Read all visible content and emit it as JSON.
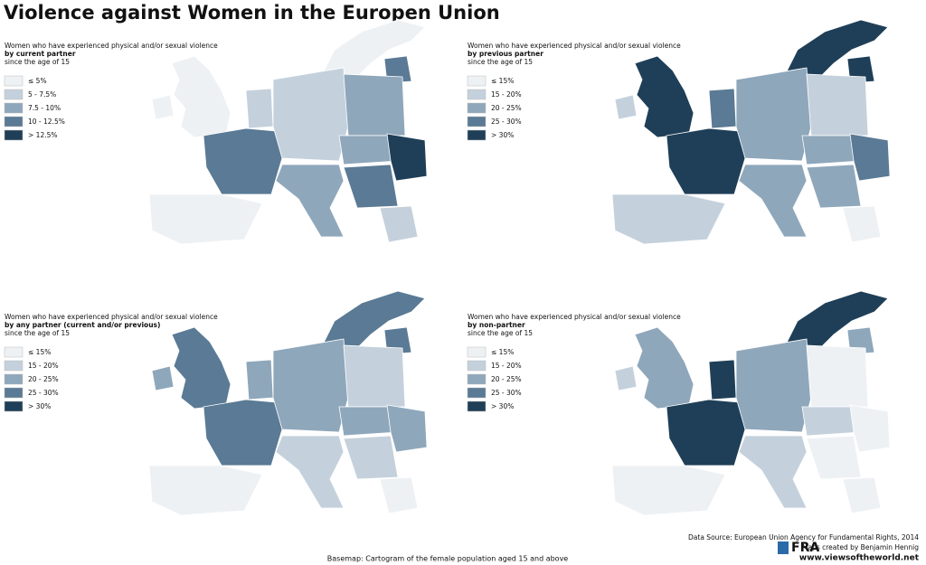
{
  "title": "Violence against Women in the Europen Union",
  "panels": [
    {
      "legend_title": "Women who have experienced physical and/or sexual violence",
      "legend_subtitle": "by current partner",
      "legend_note": "since the age of 15",
      "legend": [
        {
          "label": "≤ 5%",
          "color": "#eef1f4"
        },
        {
          "label": "5 - 7.5%",
          "color": "#c4d1dc"
        },
        {
          "label": "7.5 - 10%",
          "color": "#8fa7bb"
        },
        {
          "label": "10 - 12.5%",
          "color": "#5a7a95"
        },
        {
          "label": "> 12.5%",
          "color": "#1f3f58"
        }
      ]
    },
    {
      "legend_title": "Women who have experienced physical and/or sexual violence",
      "legend_subtitle": "by previous partner",
      "legend_note": "since the age of 15",
      "legend": [
        {
          "label": "≤ 15%",
          "color": "#eef1f4"
        },
        {
          "label": "15 - 20%",
          "color": "#c4d1dc"
        },
        {
          "label": "20 - 25%",
          "color": "#8fa7bb"
        },
        {
          "label": "25 - 30%",
          "color": "#5a7a95"
        },
        {
          "label": "> 30%",
          "color": "#1f3f58"
        }
      ]
    },
    {
      "legend_title": "Women who have experienced physical and/or sexual violence",
      "legend_subtitle": "by any partner (current and/or previous)",
      "legend_note": "since the age of 15",
      "legend": [
        {
          "label": "≤ 15%",
          "color": "#eef1f4"
        },
        {
          "label": "15 - 20%",
          "color": "#c4d1dc"
        },
        {
          "label": "20 - 25%",
          "color": "#8fa7bb"
        },
        {
          "label": "25 - 30%",
          "color": "#5a7a95"
        },
        {
          "label": "> 30%",
          "color": "#1f3f58"
        }
      ]
    },
    {
      "legend_title": "Women who have experienced physical and/or sexual violence",
      "legend_subtitle": "by non-partner",
      "legend_note": "since the age of 15",
      "legend": [
        {
          "label": "≤ 15%",
          "color": "#eef1f4"
        },
        {
          "label": "15 - 20%",
          "color": "#c4d1dc"
        },
        {
          "label": "20 - 25%",
          "color": "#8fa7bb"
        },
        {
          "label": "25 - 30%",
          "color": "#5a7a95"
        },
        {
          "label": "> 30%",
          "color": "#1f3f58"
        }
      ]
    }
  ],
  "source": "Data Source: European Union Agency for Fundamental Rights, 2014",
  "credit": "Maps created by Benjamin Hennig",
  "website": "www.viewsoftheworld.net",
  "logo": "FRA",
  "basemap": "Basemap: Cartogram of the female population aged 15 and above"
}
